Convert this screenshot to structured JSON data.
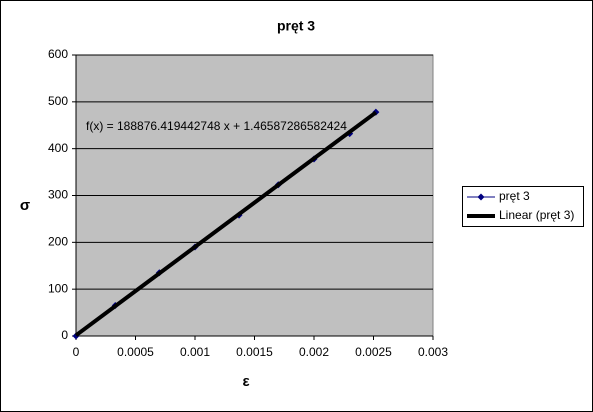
{
  "chart_data": {
    "type": "scatter",
    "title": "pręt 3",
    "x_label": "ε",
    "y_label": "σ",
    "annotation": "f(x) = 188876.419442748 x + 1.46587286582424",
    "series": [
      {
        "name": "pręt 3",
        "color": "#000080",
        "marker": "diamond",
        "line_width": 1,
        "x": [
          0,
          0.00033,
          0.0007,
          0.001,
          0.00137,
          0.0017,
          0.002,
          0.0023,
          0.00252
        ],
        "values": [
          0,
          65,
          135,
          190,
          258,
          323,
          378,
          432,
          478
        ]
      },
      {
        "name": "Linear (pręt 3)",
        "color": "#000000",
        "line_width": 4,
        "x": [
          0,
          0.00252
        ],
        "values": [
          1.47,
          477.4
        ]
      }
    ],
    "xlim": [
      0,
      0.003
    ],
    "xticks": [
      0,
      0.0005,
      0.001,
      0.0015,
      0.002,
      0.0025,
      0.003
    ],
    "ylim": [
      0,
      600
    ],
    "yticks": [
      0,
      100,
      200,
      300,
      400,
      500,
      600
    ],
    "grid": true,
    "plot_background": "#c0c0c0",
    "legend": "right"
  }
}
